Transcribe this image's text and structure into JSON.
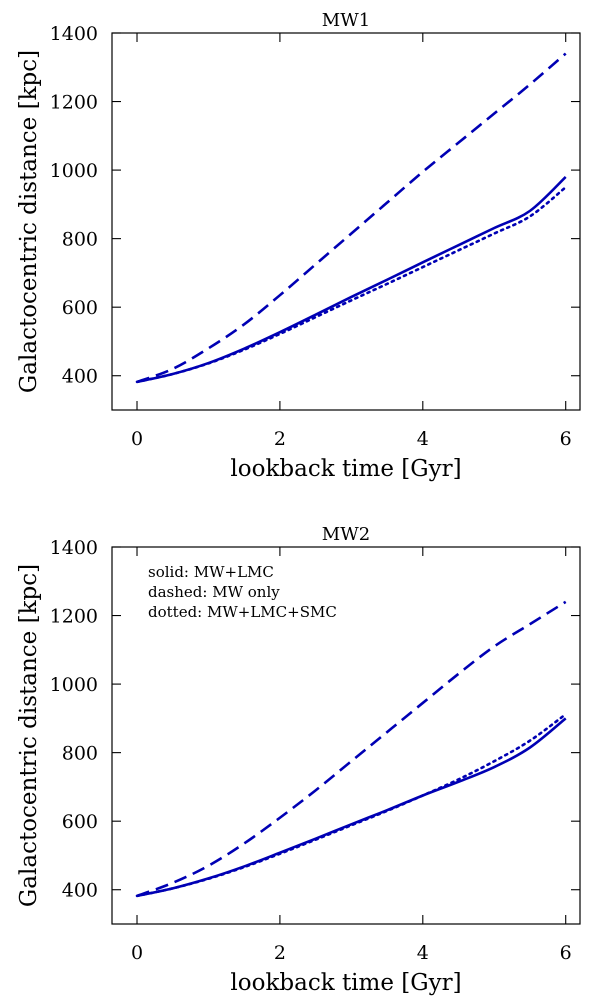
{
  "chart_data": [
    {
      "type": "line",
      "title": "MW1",
      "xlabel": "lookback time [Gyr]",
      "ylabel": "Galactocentric distance [kpc]",
      "xlim": [
        -0.35,
        6.2
      ],
      "ylim": [
        300,
        1400
      ],
      "xticks": [
        0,
        2,
        4,
        6
      ],
      "yticks": [
        400,
        600,
        800,
        1000,
        1200,
        1400
      ],
      "grid": false,
      "legend_text": [],
      "series": [
        {
          "style": "solid",
          "color": "#0000b4",
          "x": [
            0,
            0.5,
            1,
            1.5,
            2,
            2.5,
            3,
            3.5,
            4,
            4.5,
            5,
            5.5,
            6
          ],
          "y": [
            382,
            405,
            437,
            479,
            527,
            578,
            630,
            680,
            731,
            781,
            831,
            881,
            980
          ]
        },
        {
          "style": "dashed",
          "color": "#0000b4",
          "x": [
            0,
            0.5,
            1,
            1.5,
            2,
            2.5,
            3,
            3.5,
            4,
            4.5,
            5,
            5.5,
            6
          ],
          "y": [
            382,
            420,
            480,
            550,
            635,
            725,
            815,
            905,
            995,
            1080,
            1165,
            1250,
            1340
          ]
        },
        {
          "style": "dotted",
          "color": "#0000b4",
          "x": [
            0,
            0.5,
            1,
            1.5,
            2,
            2.5,
            3,
            3.5,
            4,
            4.5,
            5,
            5.5,
            6
          ],
          "y": [
            382,
            405,
            436,
            476,
            522,
            571,
            620,
            668,
            717,
            766,
            815,
            865,
            950
          ]
        }
      ]
    },
    {
      "type": "line",
      "title": "MW2",
      "xlabel": "lookback time [Gyr]",
      "ylabel": "Galactocentric distance [kpc]",
      "xlim": [
        -0.35,
        6.2
      ],
      "ylim": [
        300,
        1400
      ],
      "xticks": [
        0,
        2,
        4,
        6
      ],
      "yticks": [
        400,
        600,
        800,
        1000,
        1200,
        1400
      ],
      "grid": false,
      "legend_text": [
        "solid: MW+LMC",
        "dashed: MW only",
        "dotted: MW+LMC+SMC"
      ],
      "legend_position": "top-left",
      "series": [
        {
          "style": "solid",
          "color": "#0000b4",
          "x": [
            0,
            0.5,
            1,
            1.5,
            2,
            2.5,
            3,
            3.5,
            4,
            4.5,
            5,
            5.5,
            6
          ],
          "y": [
            382,
            404,
            433,
            468,
            508,
            549,
            591,
            632,
            675,
            715,
            758,
            815,
            900
          ]
        },
        {
          "style": "dashed",
          "color": "#0000b4",
          "x": [
            0,
            0.5,
            1,
            1.5,
            2,
            2.5,
            3,
            3.5,
            4,
            4.5,
            5,
            5.5,
            6
          ],
          "y": [
            382,
            420,
            470,
            535,
            610,
            690,
            775,
            860,
            945,
            1030,
            1110,
            1175,
            1240
          ]
        },
        {
          "style": "dotted",
          "color": "#0000b4",
          "x": [
            0,
            0.5,
            1,
            1.5,
            2,
            2.5,
            3,
            3.5,
            4,
            4.5,
            5,
            5.5,
            6
          ],
          "y": [
            382,
            404,
            432,
            466,
            505,
            546,
            588,
            630,
            675,
            722,
            775,
            835,
            912
          ]
        }
      ]
    }
  ]
}
